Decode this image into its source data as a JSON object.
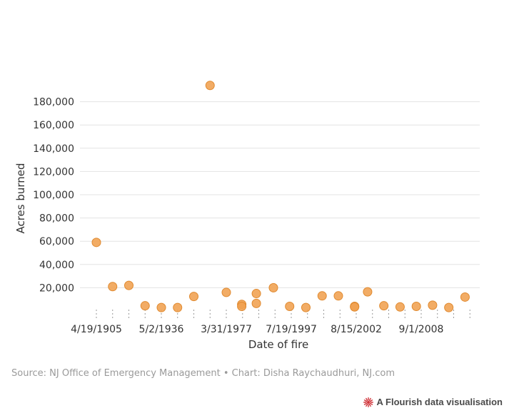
{
  "chart_data": {
    "type": "scatter",
    "title": "",
    "xlabel": "Date of fire",
    "ylabel": "Acres burned",
    "ylim": [
      0,
      200000
    ],
    "y_ticks": [
      20000,
      40000,
      60000,
      80000,
      100000,
      120000,
      140000,
      160000,
      180000
    ],
    "y_tick_labels": [
      "20,000",
      "40,000",
      "60,000",
      "80,000",
      "100,000",
      "120,000",
      "140,000",
      "160,000",
      "180,000"
    ],
    "x_categories": [
      "4/19/1905",
      "",
      "",
      "",
      "5/2/1936",
      "",
      "",
      "",
      "3/31/1977",
      "",
      "",
      "",
      "7/19/1997",
      "",
      "",
      "",
      "8/15/2002",
      "",
      "",
      "",
      "9/1/2008",
      "",
      "",
      ""
    ],
    "x_tick_labels": [
      "4/19/1905",
      "5/2/1936",
      "3/31/1977",
      "7/19/1997",
      "8/15/2002",
      "9/1/2008"
    ],
    "x_tick_label_positions": [
      0,
      4,
      8,
      12,
      16,
      20
    ],
    "grid": true,
    "marker_color": "#F0A050",
    "marker_edge": "#E08A30",
    "points": [
      {
        "x": 0.0,
        "y": 59000
      },
      {
        "x": 1.0,
        "y": 21000
      },
      {
        "x": 2.0,
        "y": 22000
      },
      {
        "x": 3.0,
        "y": 4500
      },
      {
        "x": 4.0,
        "y": 3000
      },
      {
        "x": 5.0,
        "y": 3000
      },
      {
        "x": 6.0,
        "y": 12500
      },
      {
        "x": 7.0,
        "y": 194000
      },
      {
        "x": 8.0,
        "y": 16000
      },
      {
        "x": 8.95,
        "y": 5700
      },
      {
        "x": 8.95,
        "y": 4000
      },
      {
        "x": 9.85,
        "y": 15000
      },
      {
        "x": 9.85,
        "y": 6500
      },
      {
        "x": 10.9,
        "y": 20000
      },
      {
        "x": 11.9,
        "y": 4000
      },
      {
        "x": 12.9,
        "y": 3000
      },
      {
        "x": 13.9,
        "y": 13000
      },
      {
        "x": 14.9,
        "y": 13000
      },
      {
        "x": 15.9,
        "y": 4000
      },
      {
        "x": 15.9,
        "y": 3500
      },
      {
        "x": 16.7,
        "y": 16500
      },
      {
        "x": 17.7,
        "y": 4500
      },
      {
        "x": 18.7,
        "y": 3500
      },
      {
        "x": 19.7,
        "y": 4000
      },
      {
        "x": 20.7,
        "y": 5000
      },
      {
        "x": 21.7,
        "y": 3000
      },
      {
        "x": 22.7,
        "y": 12000
      }
    ]
  },
  "footer": {
    "source": "Source: NJ Office of Emergency Management • Chart: Disha Raychaudhuri, NJ.com",
    "brand": "A Flourish data visualisation",
    "brand_icon": "flourish-burst-icon",
    "brand_color": "#D0343A"
  }
}
